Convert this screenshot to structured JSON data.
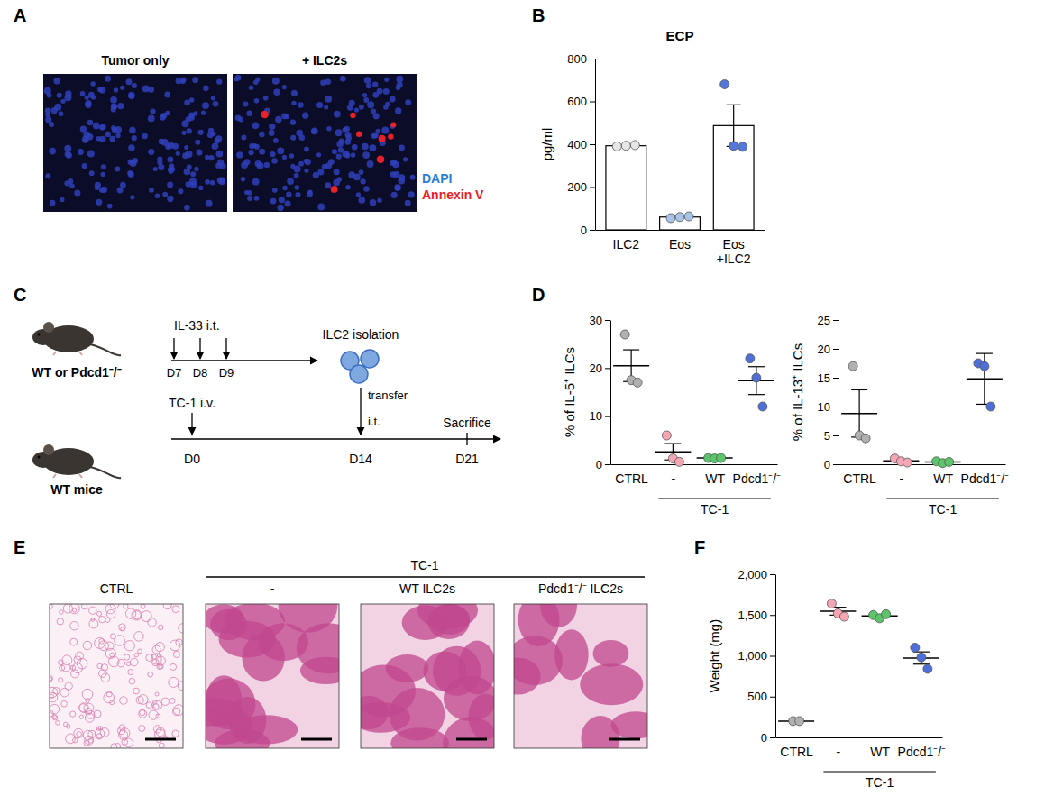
{
  "panel_labels": [
    "A",
    "B",
    "C",
    "D",
    "E",
    "F"
  ],
  "panel_a": {
    "images": [
      "Tumor only",
      "+ ILC2s"
    ],
    "stains": [
      {
        "label": "DAPI",
        "color": "#2b7fd4"
      },
      {
        "label": "Annexin V",
        "color": "#e8202a"
      }
    ]
  },
  "panel_c": {
    "mouse_labels": [
      "WT or Pdcd1⁻/⁻",
      "WT mice"
    ],
    "treatment": "IL-33 i.t.",
    "treatment_days": [
      "D7",
      "D8",
      "D9"
    ],
    "isolation": "ILC2 isolation",
    "transfer": "transfer",
    "route": "i.t.",
    "tumor": "TC-1 i.v.",
    "timeline_days": [
      "D0",
      "D14",
      "D21"
    ],
    "endpoint": "Sacrifice"
  },
  "panel_e": {
    "group_label": "TC-1",
    "images": [
      "CTRL",
      "-",
      "WT ILC2s",
      "Pdcd1⁻/⁻ ILC2s"
    ]
  },
  "chart_data": [
    {
      "type": "bar",
      "title": "ECP",
      "y_label": "pg/ml",
      "categories": [
        "ILC2",
        "Eos",
        "Eos\n+ILC2"
      ],
      "values": [
        393,
        60,
        487
      ],
      "errors": [
        2,
        3,
        97
      ],
      "points": [
        [
          390,
          393,
          396
        ],
        [
          55,
          60,
          63
        ],
        [
          680,
          392,
          388
        ]
      ],
      "color": "#ffffff",
      "colors": [
        "#e6e6e6",
        "#a9c4e8",
        "#5577d8"
      ],
      "ylim": [
        0,
        800
      ],
      "yticks": [
        0,
        200,
        400,
        600,
        800
      ]
    },
    {
      "type": "scatter",
      "y_label": "% of IL-5⁺ ILCs",
      "categories": [
        "CTRL",
        "-",
        "WT",
        "Pdcd1⁻/⁻"
      ],
      "groups": [
        {
          "label": "TC-1",
          "categories": [
            "-",
            "WT",
            "Pdcd1⁻/⁻"
          ]
        }
      ],
      "points": [
        [
          27,
          17.5,
          17
        ],
        [
          6,
          1.2,
          0.5
        ],
        [
          1.3,
          1.2,
          1.3
        ],
        [
          22,
          18,
          12
        ]
      ],
      "means": [
        20.5,
        2.6,
        1.3,
        17.4
      ],
      "errors": [
        3.3,
        1.7,
        0.05,
        2.9
      ],
      "colors": [
        "#b0b0b0",
        "#f4a6b4",
        "#5cc46a",
        "#4f6fd8"
      ],
      "ylim": [
        0,
        30
      ],
      "yticks": [
        0,
        10,
        20,
        30
      ]
    },
    {
      "type": "scatter",
      "y_label": "% of IL-13⁺ ILCs",
      "categories": [
        "CTRL",
        "-",
        "WT",
        "Pdcd1⁻/⁻"
      ],
      "groups": [
        {
          "label": "TC-1",
          "categories": [
            "-",
            "WT",
            "Pdcd1⁻/⁻"
          ]
        }
      ],
      "points": [
        [
          17,
          5,
          4.5
        ],
        [
          1,
          0.5,
          0.3
        ],
        [
          0.5,
          0.2,
          0.4
        ],
        [
          17.5,
          17,
          10
        ]
      ],
      "means": [
        8.8,
        0.6,
        0.4,
        14.8
      ],
      "errors": [
        4.1,
        0.2,
        0.1,
        4.4
      ],
      "colors": [
        "#b0b0b0",
        "#f4a6b4",
        "#5cc46a",
        "#4f6fd8"
      ],
      "ylim": [
        0,
        25
      ],
      "yticks": [
        0,
        5,
        10,
        15,
        20,
        25
      ]
    },
    {
      "type": "scatter",
      "y_label": "Weight (mg)",
      "categories": [
        "CTRL",
        "-",
        "WT",
        "Pdcd1⁻/⁻"
      ],
      "groups": [
        {
          "label": "TC-1",
          "categories": [
            "-",
            "WT",
            "Pdcd1⁻/⁻"
          ]
        }
      ],
      "points": [
        [
          200,
          200
        ],
        [
          1640,
          1520,
          1480
        ],
        [
          1500,
          1460,
          1510
        ],
        [
          1100,
          980,
          840
        ]
      ],
      "means": [
        200,
        1547,
        1490,
        973
      ],
      "errors": [
        0,
        48,
        15,
        75
      ],
      "colors": [
        "#b0b0b0",
        "#f4a6b4",
        "#5cc46a",
        "#4f6fd8"
      ],
      "ylim": [
        0,
        2000
      ],
      "yticks": [
        0,
        500,
        {
          "value": 1000,
          "label": "1,000"
        },
        {
          "value": 1500,
          "label": "1,500"
        },
        {
          "value": 2000,
          "label": "2,000"
        }
      ]
    }
  ]
}
